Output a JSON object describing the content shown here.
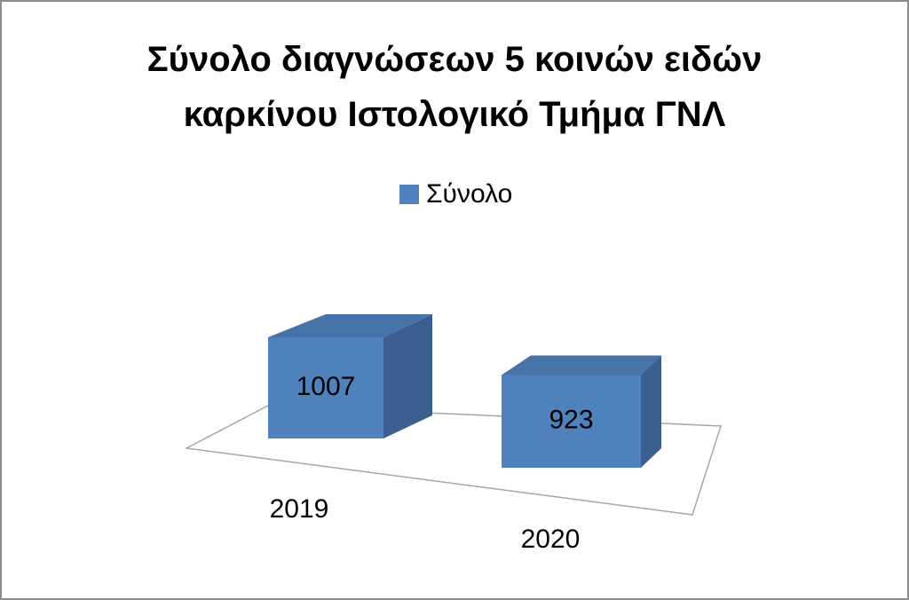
{
  "chart_data": {
    "type": "bar3d",
    "title": "Σύνολο διαγνώσεων 5 κοινών ειδών καρκίνου Ιστολογικό Τμήμα ΓΝΛ",
    "categories": [
      "2019",
      "2020"
    ],
    "series": [
      {
        "name": "Σύνολο",
        "color": "#4f81bd",
        "values": [
          1007,
          923
        ]
      }
    ],
    "legend": "top"
  }
}
